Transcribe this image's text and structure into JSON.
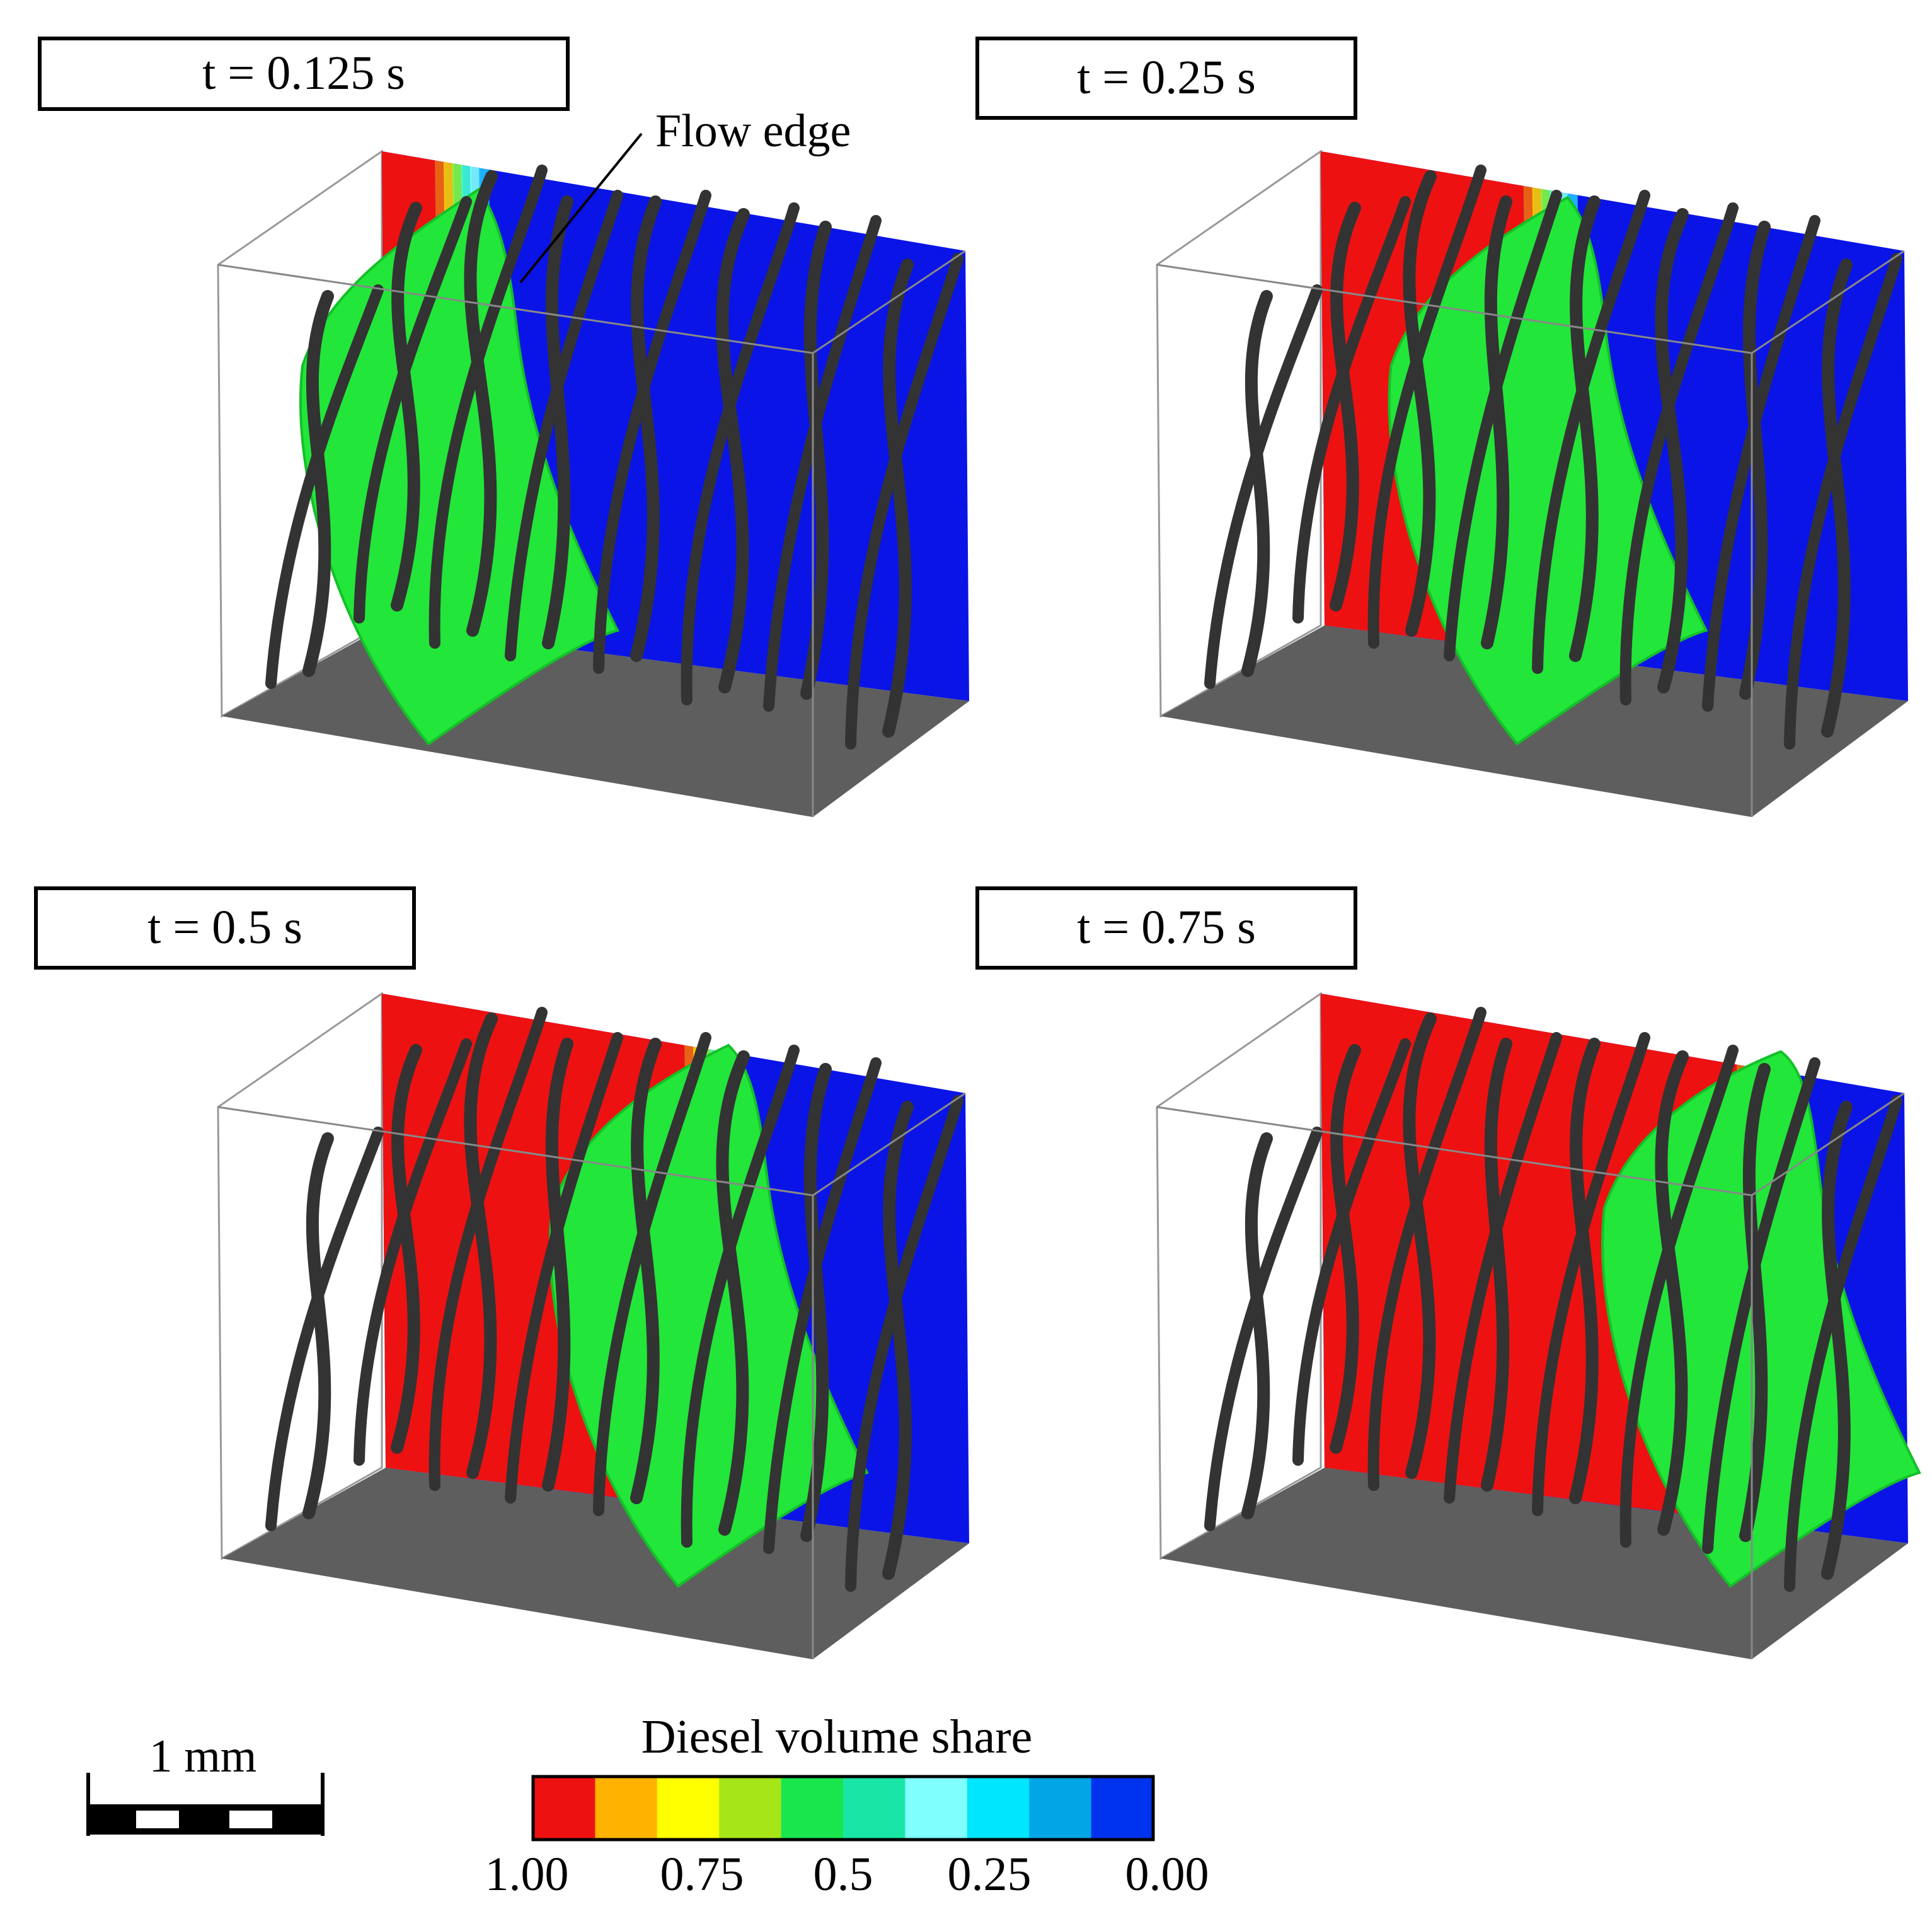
{
  "panels": [
    {
      "id": "p1",
      "time_label": "t = 0.125 s",
      "front": 0.0,
      "annotation": "Flow edge"
    },
    {
      "id": "p2",
      "time_label": "t = 0.25 s",
      "front": 0.33
    },
    {
      "id": "p3",
      "time_label": "t = 0.5 s",
      "front": 0.55
    },
    {
      "id": "p4",
      "time_label": "t = 0.75 s",
      "front": 0.8
    }
  ],
  "scale_bar": {
    "label": "1 mm"
  },
  "colorbar": {
    "title": "Diesel volume share",
    "colors": [
      "#ee1111",
      "#ffb300",
      "#ffff00",
      "#a6e619",
      "#19e64c",
      "#19e6a6",
      "#80ffff",
      "#00e6ff",
      "#00a6e6",
      "#0033ee"
    ],
    "tick_labels": [
      "1.00",
      "0.75",
      "0.5",
      "0.25",
      "0.00"
    ]
  },
  "colors": {
    "red": "#ee1111",
    "blue": "#0a14e6",
    "green": "#22e63a",
    "floor": "#5e5e5e",
    "strut": "#333333"
  }
}
